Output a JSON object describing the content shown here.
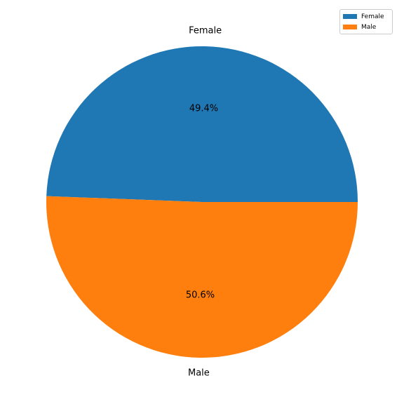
{
  "chart_data": {
    "type": "pie",
    "slices": [
      {
        "label": "Female",
        "value": 49.4,
        "pct_label": "49.4%",
        "color": "#1f77b4"
      },
      {
        "label": "Male",
        "value": 50.6,
        "pct_label": "50.6%",
        "color": "#ff7f0e"
      }
    ],
    "legend": {
      "position": "top-right",
      "entries": [
        "Female",
        "Male"
      ]
    }
  }
}
